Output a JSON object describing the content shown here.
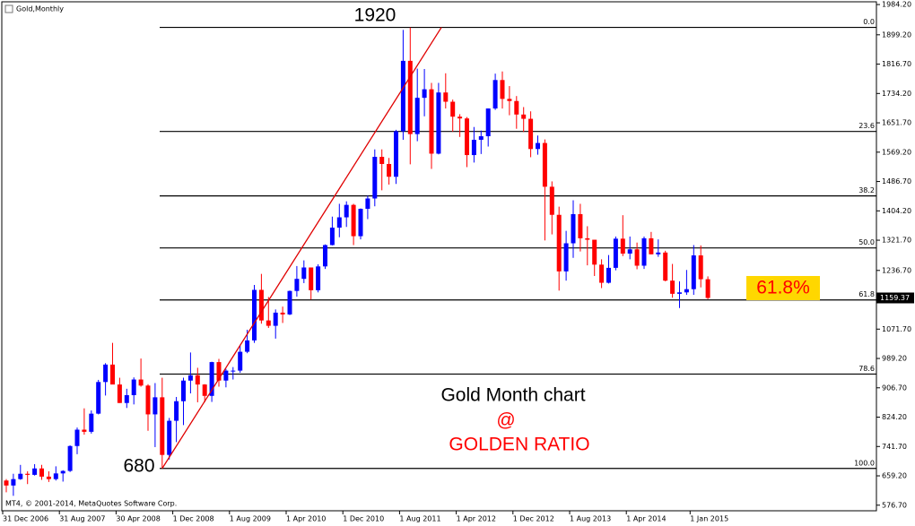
{
  "chart_data": {
    "type": "candlestick",
    "title": "Gold,Monthly",
    "footer": "MT4, © 2001-2014, MetaQuotes Software Corp.",
    "up_color": "#0000ff",
    "down_color": "#ff0000",
    "categories": [
      "31 Dec 2006",
      null,
      null,
      null,
      null,
      null,
      null,
      null,
      "31 Aug 2007",
      null,
      null,
      null,
      null,
      null,
      null,
      null,
      "30 Apr 2008",
      null,
      null,
      null,
      null,
      null,
      null,
      null,
      "1 Dec 2008",
      null,
      null,
      null,
      null,
      null,
      null,
      null,
      "1 Aug 2009",
      null,
      null,
      null,
      null,
      null,
      null,
      null,
      "1 Apr 2010",
      null,
      null,
      null,
      null,
      null,
      null,
      null,
      "1 Dec 2010",
      null,
      null,
      null,
      null,
      null,
      null,
      null,
      "1 Aug 2011",
      null,
      null,
      null,
      null,
      null,
      null,
      null,
      "1 Apr 2012",
      null,
      null,
      null,
      null,
      null,
      null,
      null,
      "1 Dec 2012",
      null,
      null,
      null,
      null,
      null,
      null,
      null,
      "1 Aug 2013",
      null,
      null,
      null,
      null,
      null,
      null,
      null,
      "1 Apr 2014",
      null,
      null,
      null,
      null,
      null,
      null,
      null,
      null,
      "1 Jan 2015",
      null,
      null
    ],
    "open": [
      646,
      632,
      650,
      665,
      662,
      680,
      657,
      650,
      666,
      673,
      743,
      789,
      783,
      834,
      923,
      972,
      916,
      864,
      886,
      930,
      913,
      832,
      880,
      718,
      814,
      869,
      927,
      942,
      916,
      884,
      979,
      927,
      955,
      955,
      1008,
      1040,
      1182,
      1096,
      1081,
      1118,
      1113,
      1179,
      1213,
      1245,
      1181,
      1248,
      1308,
      1357,
      1386,
      1421,
      1333,
      1410,
      1439,
      1556,
      1536,
      1500,
      1628,
      1826,
      1620,
      1722,
      1746,
      1565,
      1737,
      1711,
      1669,
      1664,
      1561,
      1604,
      1614,
      1692,
      1772,
      1719,
      1713,
      1675,
      1663,
      1578,
      1595,
      1472,
      1393,
      1234,
      1313,
      1395,
      1327,
      1323,
      1253,
      1202,
      1244,
      1326,
      1284,
      1296,
      1250,
      1327,
      1282,
      1287,
      1208,
      1171,
      1175,
      1184,
      1279,
      1212
    ],
    "high": [
      650,
      665,
      690,
      672,
      692,
      690,
      672,
      686,
      675,
      745,
      795,
      849,
      843,
      929,
      976,
      1033,
      935,
      904,
      936,
      989,
      917,
      920,
      935,
      822,
      881,
      935,
      1006,
      963,
      917,
      980,
      988,
      960,
      965,
      1025,
      1070,
      1196,
      1227,
      1162,
      1127,
      1135,
      1180,
      1249,
      1265,
      1245,
      1254,
      1310,
      1388,
      1424,
      1431,
      1424,
      1411,
      1447,
      1577,
      1577,
      1553,
      1632,
      1913,
      1920,
      1804,
      1803,
      1764,
      1764,
      1791,
      1717,
      1676,
      1668,
      1640,
      1630,
      1692,
      1790,
      1796,
      1755,
      1727,
      1696,
      1684,
      1616,
      1605,
      1487,
      1416,
      1348,
      1434,
      1424,
      1361,
      1323,
      1268,
      1280,
      1332,
      1392,
      1332,
      1315,
      1332,
      1345,
      1324,
      1292,
      1255,
      1206,
      1238,
      1308,
      1307,
      1220
    ],
    "low": [
      613,
      603,
      648,
      636,
      660,
      648,
      642,
      646,
      643,
      670,
      720,
      775,
      778,
      832,
      885,
      921,
      864,
      850,
      860,
      910,
      786,
      740,
      681,
      705,
      754,
      802,
      891,
      866,
      866,
      867,
      910,
      908,
      930,
      949,
      1004,
      1033,
      1087,
      1075,
      1045,
      1089,
      1111,
      1163,
      1201,
      1155,
      1175,
      1241,
      1307,
      1330,
      1359,
      1308,
      1324,
      1381,
      1417,
      1462,
      1478,
      1480,
      1604,
      1535,
      1600,
      1670,
      1522,
      1563,
      1692,
      1627,
      1612,
      1527,
      1540,
      1564,
      1585,
      1688,
      1692,
      1673,
      1635,
      1626,
      1555,
      1562,
      1321,
      1338,
      1180,
      1208,
      1272,
      1290,
      1251,
      1221,
      1187,
      1200,
      1237,
      1277,
      1268,
      1240,
      1241,
      1282,
      1275,
      1206,
      1160,
      1131,
      1168,
      1168,
      1189,
      1156
    ],
    "close": [
      632,
      650,
      665,
      662,
      680,
      657,
      650,
      666,
      673,
      743,
      789,
      783,
      834,
      923,
      972,
      916,
      864,
      886,
      930,
      913,
      832,
      880,
      718,
      814,
      869,
      927,
      942,
      916,
      884,
      979,
      927,
      955,
      955,
      1008,
      1040,
      1182,
      1096,
      1081,
      1118,
      1113,
      1179,
      1213,
      1245,
      1181,
      1248,
      1308,
      1357,
      1386,
      1421,
      1333,
      1410,
      1439,
      1556,
      1536,
      1500,
      1628,
      1826,
      1620,
      1722,
      1746,
      1565,
      1737,
      1711,
      1669,
      1664,
      1561,
      1604,
      1614,
      1692,
      1772,
      1719,
      1713,
      1675,
      1663,
      1578,
      1595,
      1472,
      1393,
      1234,
      1313,
      1395,
      1327,
      1323,
      1253,
      1202,
      1244,
      1326,
      1284,
      1296,
      1250,
      1327,
      1282,
      1287,
      1208,
      1171,
      1175,
      1184,
      1279,
      1212,
      1159.37
    ],
    "ylim": [
      561,
      1997
    ],
    "yticks": [
      {
        "value": 1984.2,
        "label": "1984.20"
      },
      {
        "value": 1899.2,
        "label": "1899.20"
      },
      {
        "value": 1816.7,
        "label": "1816.70"
      },
      {
        "value": 1734.2,
        "label": "1734.20"
      },
      {
        "value": 1651.7,
        "label": "1651.70"
      },
      {
        "value": 1569.2,
        "label": "1569.20"
      },
      {
        "value": 1486.7,
        "label": "1486.70"
      },
      {
        "value": 1404.2,
        "label": "1404.20"
      },
      {
        "value": 1321.7,
        "label": "1321.70"
      },
      {
        "value": 1236.7,
        "label": "1236.70"
      },
      {
        "value": 1071.7,
        "label": "1071.70"
      },
      {
        "value": 989.2,
        "label": "989.20"
      },
      {
        "value": 906.7,
        "label": "906.70"
      },
      {
        "value": 824.2,
        "label": "824.20"
      },
      {
        "value": 741.7,
        "label": "741.70"
      },
      {
        "value": 659.2,
        "label": "659.20"
      },
      {
        "value": 576.7,
        "label": "576.70"
      }
    ],
    "current_price": {
      "value": 1159.37,
      "label": "1159.37"
    },
    "fib_levels": [
      {
        "level": "0.0",
        "price": 1920
      },
      {
        "level": "23.6",
        "price": 1627.4
      },
      {
        "level": "38.2",
        "price": 1446.3
      },
      {
        "level": "50.0",
        "price": 1300
      },
      {
        "level": "61.8",
        "price": 1153.7
      },
      {
        "level": "78.6",
        "price": 945.4
      },
      {
        "level": "100.0",
        "price": 680
      }
    ],
    "trendline": {
      "color": "#e00000",
      "start": {
        "index": 22,
        "price": 680
      },
      "end": {
        "index": 61.4,
        "price": 1920
      }
    },
    "annotations": {
      "high": "1920",
      "low": "680",
      "highlight": "61.8%",
      "caption": "Gold Month chart",
      "at": "@",
      "subtitle": "GOLDEN RATIO"
    }
  }
}
